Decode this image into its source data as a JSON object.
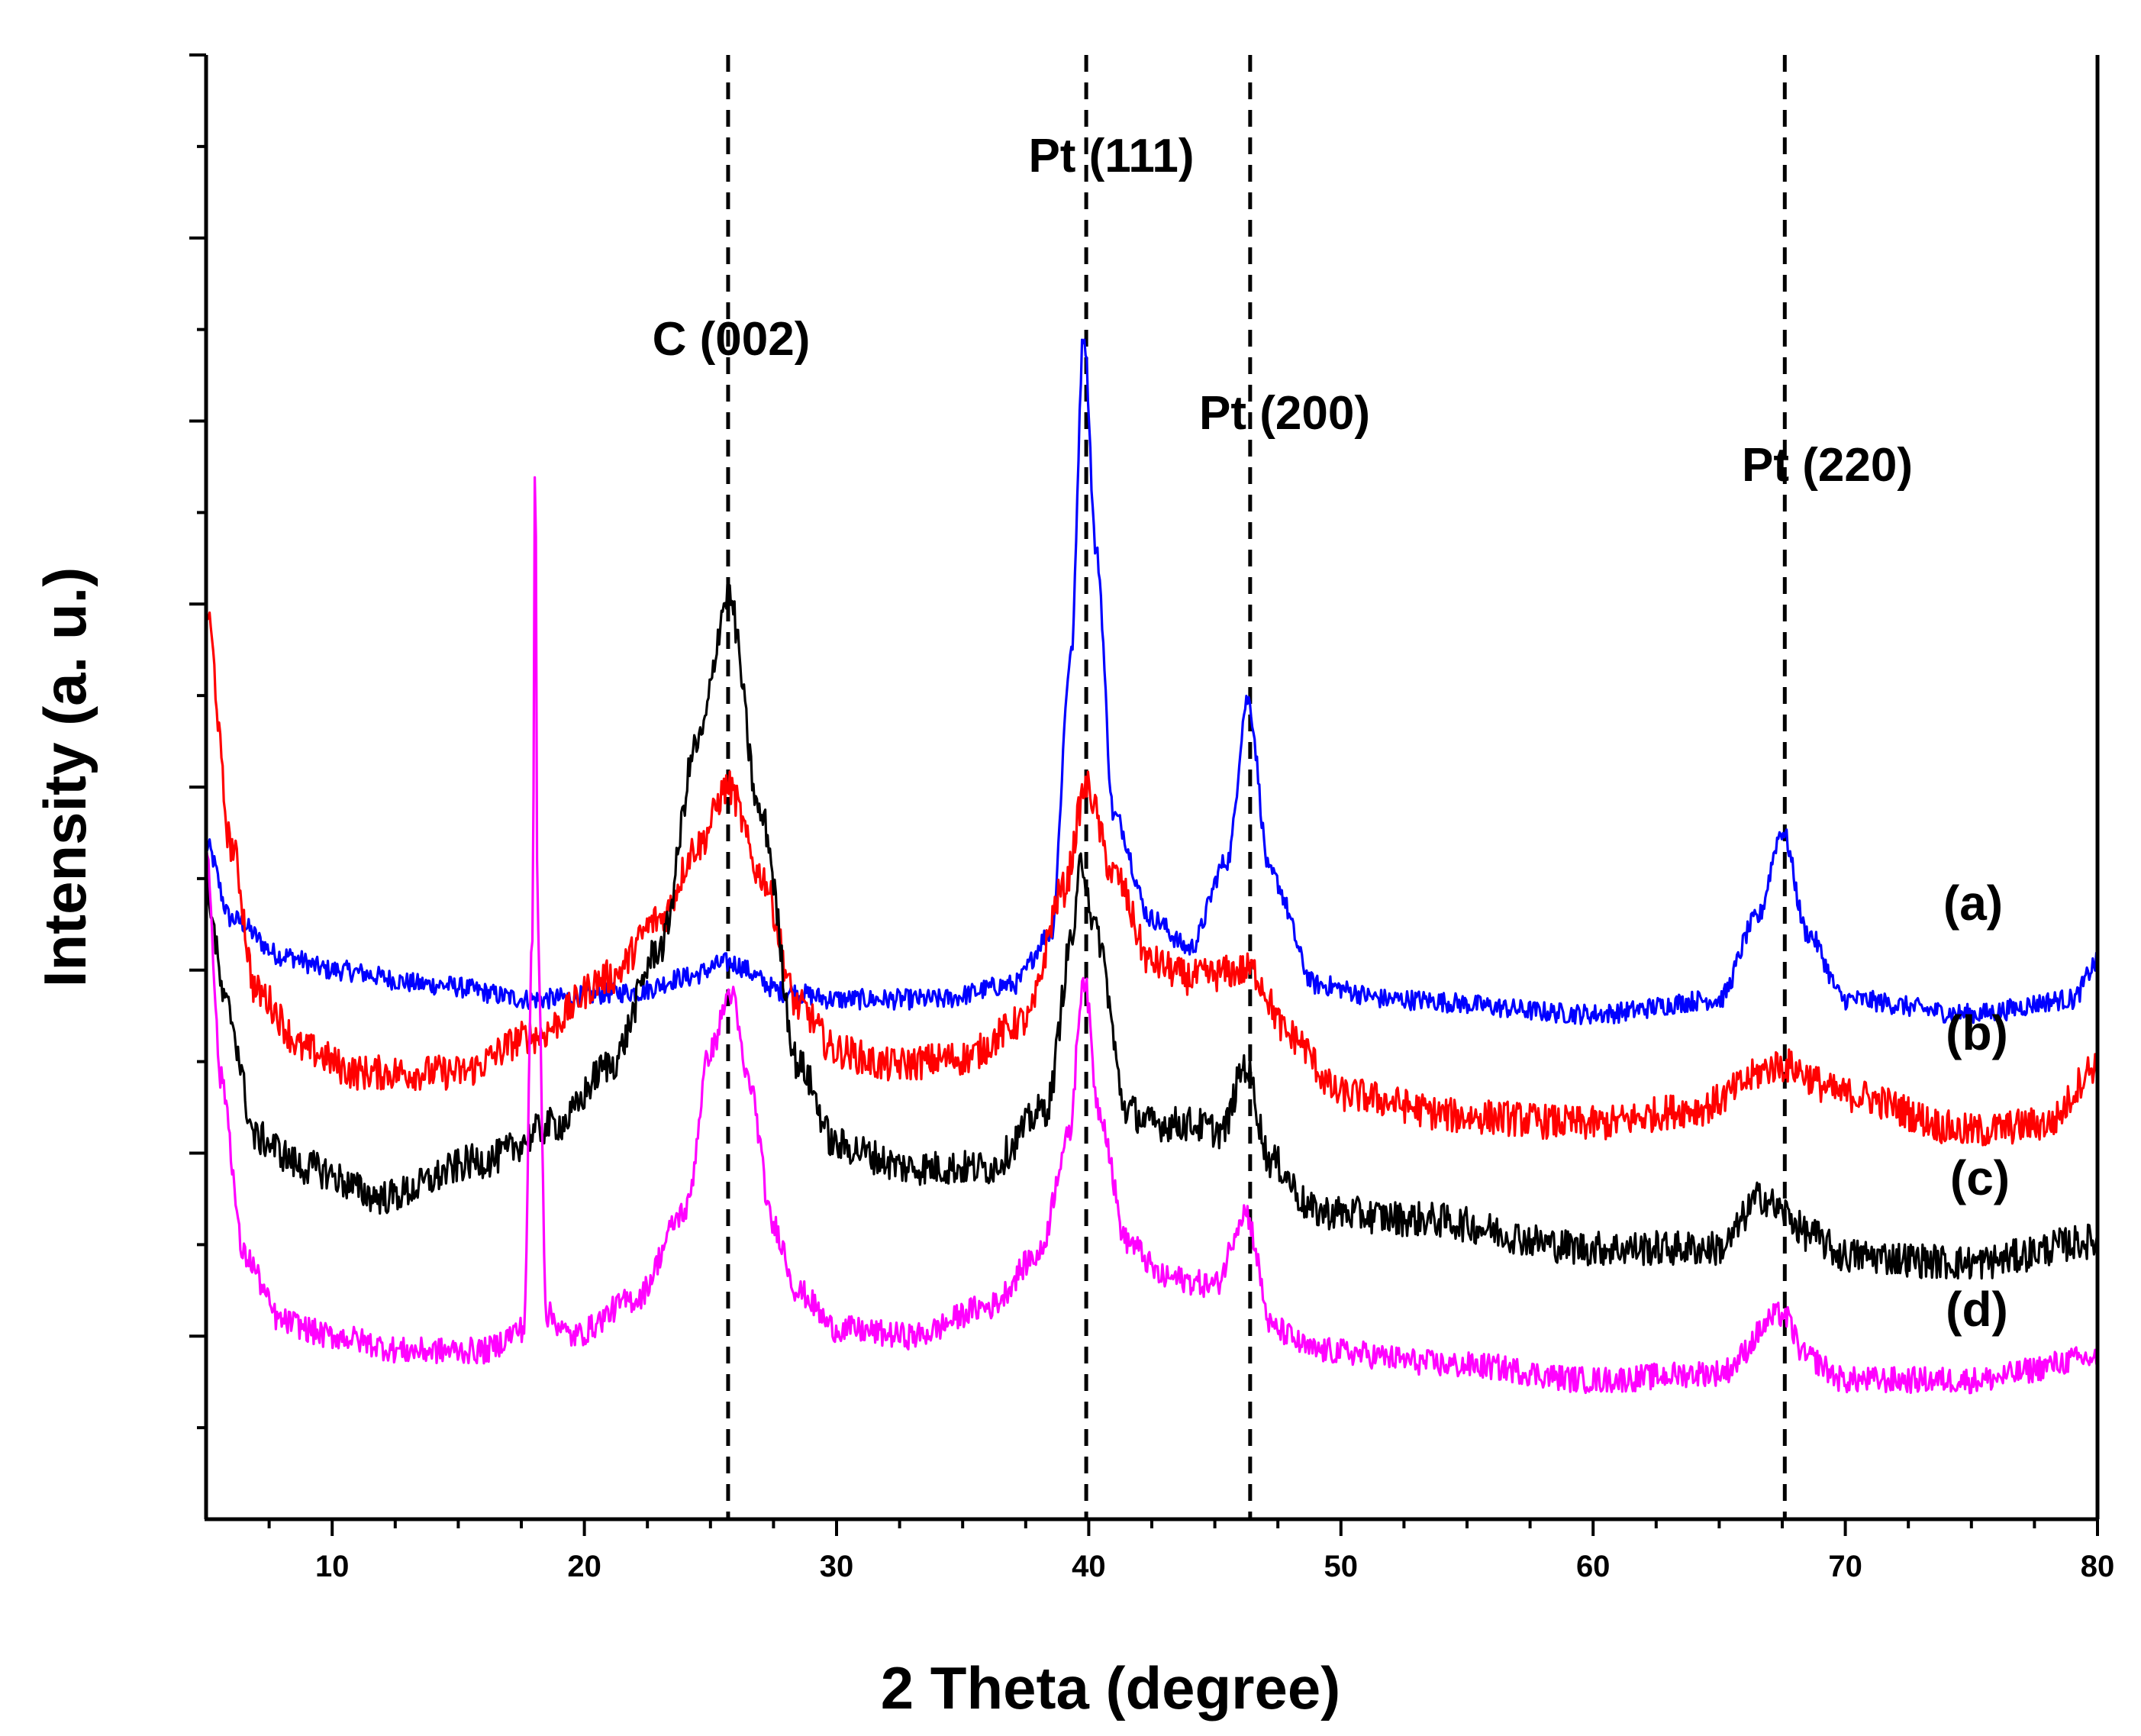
{
  "chart_data": {
    "type": "line",
    "title": "",
    "xlabel": "2 Theta (degree)",
    "ylabel": "Intensity (a. u.)",
    "xlim": [
      5,
      80
    ],
    "ylim": [
      0,
      100
    ],
    "x_ticks": [
      10,
      20,
      30,
      40,
      50,
      60,
      70,
      80
    ],
    "x_tick_labels": [
      "10",
      "20",
      "30",
      "40",
      "50",
      "60",
      "70",
      "80"
    ],
    "y_tick_count": 16,
    "y_tick_labels_shown": false,
    "grid": false,
    "reference_lines": [
      {
        "x": 25.7,
        "label": "C (002)"
      },
      {
        "x": 39.9,
        "label": "Pt (111)"
      },
      {
        "x": 46.4,
        "label": "Pt (200)"
      },
      {
        "x": 67.6,
        "label": "Pt (220)"
      }
    ],
    "series": [
      {
        "name": "(a)",
        "color": "#0000ff",
        "noise": 0.7,
        "x": [
          5,
          6,
          8,
          10,
          14,
          18,
          22,
          24,
          25.7,
          28,
          30,
          34,
          37,
          38.5,
          39.3,
          39.8,
          40.3,
          41,
          42.5,
          44,
          45.5,
          46.3,
          47.2,
          49,
          52,
          60,
          65,
          66.5,
          67.5,
          68.5,
          70,
          75,
          79,
          80
        ],
        "values": [
          46,
          41,
          38.5,
          37.5,
          36.5,
          35.5,
          36,
          37,
          38,
          36,
          35.5,
          35.5,
          36.5,
          40,
          59,
          81,
          66,
          48,
          41,
          39,
          45,
          56,
          44,
          36.5,
          35.5,
          34.5,
          35.5,
          41,
          47,
          40,
          35.5,
          34.5,
          35.5,
          38
        ]
      },
      {
        "name": "(b)",
        "color": "#ff0000",
        "noise": 1.2,
        "x": [
          5,
          6,
          7,
          9,
          11,
          15,
          18,
          21,
          23,
          24.5,
          25.7,
          27,
          28.5,
          30,
          32,
          35,
          37.5,
          39,
          39.9,
          41,
          42.5,
          44,
          46.4,
          48,
          50,
          55,
          60,
          64,
          67.5,
          70,
          75,
          78,
          80
        ],
        "values": [
          62,
          46,
          36,
          32,
          30.5,
          30.5,
          33,
          37,
          41,
          46,
          50,
          44,
          35,
          32,
          31,
          31.5,
          34,
          43,
          50,
          44,
          38,
          37,
          37.5,
          33,
          29,
          27.5,
          27,
          28,
          31,
          29,
          26.5,
          27,
          31
        ]
      },
      {
        "name": "(c)",
        "color": "#000000",
        "noise": 1.2,
        "x": [
          5,
          5.8,
          7,
          9,
          12,
          16,
          19,
          21,
          23,
          24.5,
          25.7,
          27,
          28.5,
          30,
          33,
          36,
          38.3,
          39.4,
          39.7,
          40.3,
          41.5,
          42.5,
          44,
          45.3,
          46.2,
          47.2,
          49,
          53,
          60,
          65,
          66.7,
          67.5,
          68.5,
          70,
          75,
          80
        ],
        "values": [
          43,
          35,
          26,
          24,
          22,
          24.5,
          27,
          31,
          39,
          53,
          63,
          48,
          31,
          25.5,
          24,
          24,
          28,
          40,
          45,
          40,
          28,
          27,
          27,
          26.5,
          31,
          24.5,
          21,
          20.5,
          18.5,
          18.5,
          22,
          21,
          19.5,
          18,
          17.5,
          19
        ]
      },
      {
        "name": "(d)",
        "color": "#ff00ff",
        "noise": 0.9,
        "x": [
          5,
          5.6,
          6.5,
          8,
          10,
          13,
          16,
          17.6,
          17.95,
          18.05,
          18.15,
          18.5,
          19.5,
          22,
          24,
          25,
          25.8,
          26.5,
          27.5,
          28.5,
          30,
          33,
          36,
          38,
          39.2,
          39.8,
          40.4,
          41.5,
          43,
          45,
          46.2,
          47.3,
          49,
          55,
          60,
          65,
          67.5,
          68.5,
          70,
          75,
          80
        ],
        "values": [
          46,
          30,
          18,
          13.5,
          12.5,
          11.5,
          11.5,
          13,
          40,
          74,
          40,
          14,
          12.5,
          15,
          21,
          32,
          36,
          30,
          20,
          15.5,
          13,
          12.5,
          14.5,
          18,
          26,
          37,
          28,
          19,
          16.5,
          16,
          21,
          13,
          11.5,
          10.5,
          9.5,
          10,
          14,
          11,
          9.5,
          9.5,
          11
        ]
      }
    ]
  }
}
